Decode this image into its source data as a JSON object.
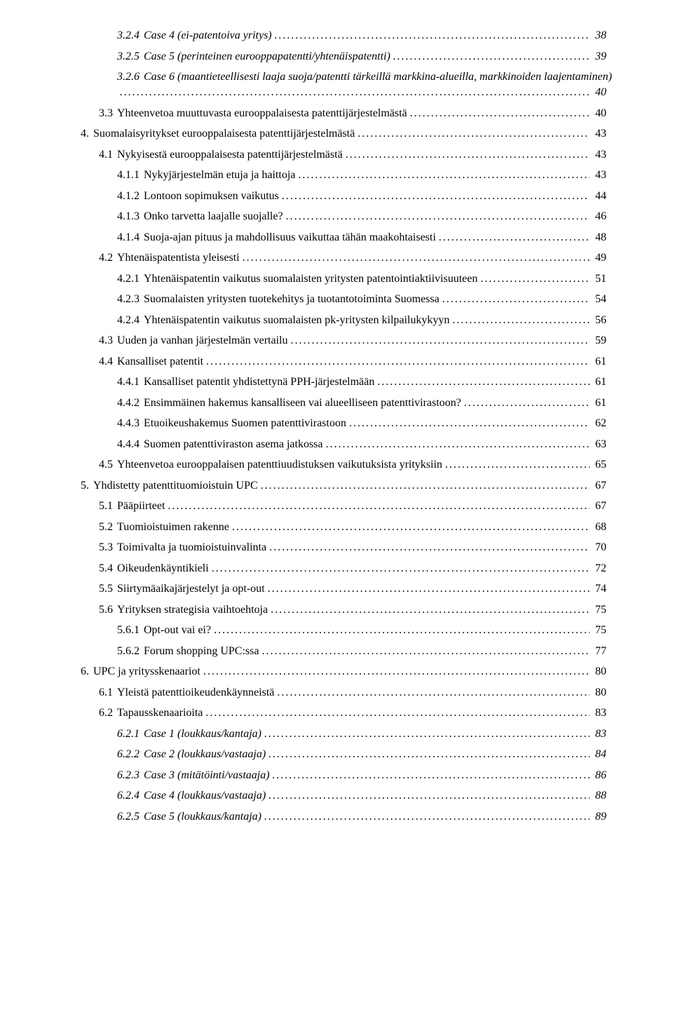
{
  "toc": [
    {
      "num": "3.2.4",
      "title": "Case 4 (ei-patentoiva yritys)",
      "page": "38",
      "indent": 3,
      "italic": true
    },
    {
      "num": "3.2.5",
      "title": "Case 5 (perinteinen eurooppapatentti/yhtenäispatentti)",
      "page": "39",
      "indent": 3,
      "italic": true
    },
    {
      "num": "3.2.6",
      "title": "Case 6 (maantieteellisesti laaja suoja/patentti tärkeillä markkina-alueilla, markkinoiden laajentaminen)",
      "page": "40",
      "indent": 3,
      "italic": true,
      "wrap": true
    },
    {
      "num": "3.3",
      "title": "Yhteenvetoa muuttuvasta eurooppalaisesta patenttijärjestelmästä",
      "page": "40",
      "indent": 1
    },
    {
      "num": "4.",
      "title": "Suomalaisyritykset eurooppalaisesta patenttijärjestelmästä",
      "page": "43",
      "indent": 0
    },
    {
      "num": "4.1",
      "title": "Nykyisestä eurooppalaisesta patenttijärjestelmästä",
      "page": "43",
      "indent": 1
    },
    {
      "num": "4.1.1",
      "title": "Nykyjärjestelmän etuja ja haittoja",
      "page": "43",
      "indent": 2
    },
    {
      "num": "4.1.2",
      "title": "Lontoon sopimuksen vaikutus",
      "page": "44",
      "indent": 2
    },
    {
      "num": "4.1.3",
      "title": "Onko tarvetta laajalle suojalle?",
      "page": "46",
      "indent": 2
    },
    {
      "num": "4.1.4",
      "title": "Suoja-ajan pituus ja mahdollisuus vaikuttaa tähän maakohtaisesti",
      "page": "48",
      "indent": 2
    },
    {
      "num": "4.2",
      "title": "Yhtenäispatentista yleisesti",
      "page": "49",
      "indent": 1
    },
    {
      "num": "4.2.1",
      "title": "Yhtenäispatentin vaikutus suomalaisten yritysten patentointiaktiivisuuteen",
      "page": "51",
      "indent": 2
    },
    {
      "num": "4.2.3",
      "title": "Suomalaisten yritysten tuotekehitys ja tuotantotoiminta Suomessa",
      "page": "54",
      "indent": 2
    },
    {
      "num": "4.2.4",
      "title": "Yhtenäispatentin vaikutus suomalaisten pk-yritysten kilpailukykyyn",
      "page": "56",
      "indent": 2
    },
    {
      "num": "4.3",
      "title": "Uuden ja vanhan järjestelmän vertailu",
      "page": "59",
      "indent": 1
    },
    {
      "num": "4.4",
      "title": "Kansalliset patentit",
      "page": "61",
      "indent": 1
    },
    {
      "num": "4.4.1",
      "title": "Kansalliset patentit yhdistettynä PPH-järjestelmään",
      "page": "61",
      "indent": 2
    },
    {
      "num": "4.4.2",
      "title": "Ensimmäinen hakemus kansalliseen vai alueelliseen patenttivirastoon?",
      "page": "61",
      "indent": 2
    },
    {
      "num": "4.4.3",
      "title": "Etuoikeushakemus Suomen patenttivirastoon",
      "page": "62",
      "indent": 2
    },
    {
      "num": "4.4.4",
      "title": "Suomen patenttiviraston asema jatkossa",
      "page": "63",
      "indent": 2
    },
    {
      "num": "4.5",
      "title": "Yhteenvetoa eurooppalaisen patenttiuudistuksen vaikutuksista yrityksiin",
      "page": "65",
      "indent": 1
    },
    {
      "num": "5.",
      "title": "Yhdistetty patenttituomioistuin UPC",
      "page": "67",
      "indent": 0
    },
    {
      "num": "5.1",
      "title": "Pääpiirteet",
      "page": "67",
      "indent": 1
    },
    {
      "num": "5.2",
      "title": "Tuomioistuimen rakenne",
      "page": "68",
      "indent": 1
    },
    {
      "num": "5.3",
      "title": "Toimivalta ja tuomioistuinvalinta",
      "page": "70",
      "indent": 1
    },
    {
      "num": "5.4",
      "title": "Oikeudenkäyntikieli",
      "page": "72",
      "indent": 1
    },
    {
      "num": "5.5",
      "title": "Siirtymäaikajärjestelyt ja opt-out",
      "page": "74",
      "indent": 1
    },
    {
      "num": "5.6",
      "title": "Yrityksen strategisia vaihtoehtoja",
      "page": "75",
      "indent": 1
    },
    {
      "num": "5.6.1",
      "title": "Opt-out vai ei?",
      "page": "75",
      "indent": 2
    },
    {
      "num": "5.6.2",
      "title": "Forum shopping UPC:ssa",
      "page": "77",
      "indent": 2
    },
    {
      "num": "6.",
      "title": "UPC ja yritysskenaariot",
      "page": "80",
      "indent": 0
    },
    {
      "num": "6.1",
      "title": "Yleistä patenttioikeudenkäynneistä",
      "page": "80",
      "indent": 1
    },
    {
      "num": "6.2",
      "title": "Tapausskenaarioita",
      "page": "83",
      "indent": 1
    },
    {
      "num": "6.2.1",
      "title": "Case 1 (loukkaus/kantaja)",
      "page": "83",
      "indent": 3,
      "italic": true
    },
    {
      "num": "6.2.2",
      "title": "Case 2 (loukkaus/vastaaja)",
      "page": "84",
      "indent": 3,
      "italic": true
    },
    {
      "num": "6.2.3",
      "title": "Case 3 (mitätöinti/vastaaja)",
      "page": "86",
      "indent": 3,
      "italic": true
    },
    {
      "num": "6.2.4",
      "title": "Case 4 (loukkaus/vastaaja)",
      "page": "88",
      "indent": 3,
      "italic": true
    },
    {
      "num": "6.2.5",
      "title": "Case 5 (loukkaus/kantaja)",
      "page": "89",
      "indent": 3,
      "italic": true
    }
  ]
}
